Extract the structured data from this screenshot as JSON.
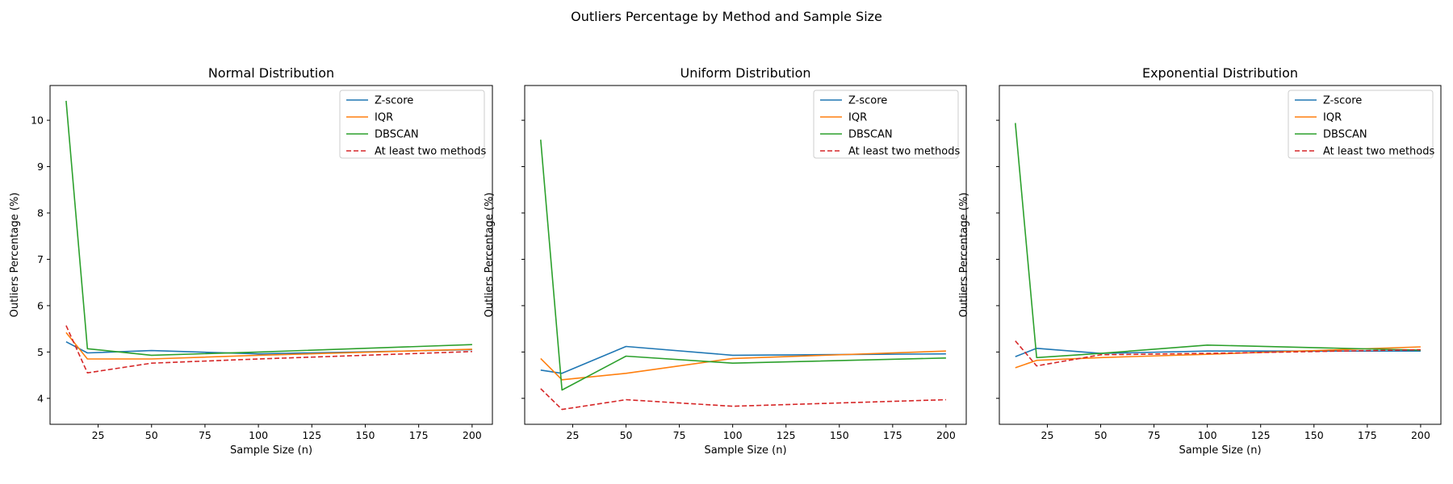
{
  "figure": {
    "title": "Outliers Percentage by Method and Sample Size"
  },
  "chart_data": [
    {
      "type": "line",
      "title": "Normal Distribution",
      "xlabel": "Sample Size (n)",
      "ylabel": "Outliers Percentage (%)",
      "xlim": [
        2.5,
        209.5
      ],
      "ylim": [
        3.44,
        10.75
      ],
      "xticks": [
        25,
        50,
        75,
        100,
        125,
        150,
        175,
        200
      ],
      "yticks": [
        4,
        5,
        6,
        7,
        8,
        9,
        10
      ],
      "show_y_tick_labels": true,
      "grid": false,
      "legend_position": "top-right",
      "x": [
        10,
        20,
        50,
        100,
        200
      ],
      "series": [
        {
          "name": "Z-score",
          "color": "#1f77b4",
          "style": "solid",
          "values": [
            5.22,
            4.98,
            5.03,
            4.96,
            5.05
          ]
        },
        {
          "name": "IQR",
          "color": "#ff7f0e",
          "style": "solid",
          "values": [
            5.42,
            4.85,
            4.85,
            4.93,
            5.06
          ]
        },
        {
          "name": "DBSCAN",
          "color": "#2ca02c",
          "style": "solid",
          "values": [
            10.42,
            5.07,
            4.93,
            5.0,
            5.16
          ]
        },
        {
          "name": "At least two methods",
          "color": "#d62728",
          "style": "dashed",
          "values": [
            5.57,
            4.55,
            4.76,
            4.85,
            5.01
          ]
        }
      ]
    },
    {
      "type": "line",
      "title": "Uniform Distribution",
      "xlabel": "Sample Size (n)",
      "ylabel": "Outliers Percentage (%)",
      "xlim": [
        2.5,
        209.5
      ],
      "ylim": [
        3.44,
        10.75
      ],
      "xticks": [
        25,
        50,
        75,
        100,
        125,
        150,
        175,
        200
      ],
      "yticks": [
        4,
        5,
        6,
        7,
        8,
        9,
        10
      ],
      "show_y_tick_labels": false,
      "grid": false,
      "legend_position": "top-right",
      "x": [
        10,
        20,
        50,
        100,
        200
      ],
      "series": [
        {
          "name": "Z-score",
          "color": "#1f77b4",
          "style": "solid",
          "values": [
            4.61,
            4.54,
            5.12,
            4.93,
            4.96
          ]
        },
        {
          "name": "IQR",
          "color": "#ff7f0e",
          "style": "solid",
          "values": [
            4.86,
            4.4,
            4.54,
            4.86,
            5.02
          ]
        },
        {
          "name": "DBSCAN",
          "color": "#2ca02c",
          "style": "solid",
          "values": [
            9.58,
            4.18,
            4.91,
            4.76,
            4.87
          ]
        },
        {
          "name": "At least two methods",
          "color": "#d62728",
          "style": "dashed",
          "values": [
            4.21,
            3.76,
            3.97,
            3.83,
            3.97
          ]
        }
      ]
    },
    {
      "type": "line",
      "title": "Exponential Distribution",
      "xlabel": "Sample Size (n)",
      "ylabel": "Outliers Percentage (%)",
      "xlim": [
        2.5,
        209.5
      ],
      "ylim": [
        3.44,
        10.75
      ],
      "xticks": [
        25,
        50,
        75,
        100,
        125,
        150,
        175,
        200
      ],
      "yticks": [
        4,
        5,
        6,
        7,
        8,
        9,
        10
      ],
      "show_y_tick_labels": false,
      "grid": false,
      "legend_position": "top-right",
      "x": [
        10,
        20,
        50,
        100,
        200
      ],
      "series": [
        {
          "name": "Z-score",
          "color": "#1f77b4",
          "style": "solid",
          "values": [
            4.9,
            5.08,
            4.97,
            5.02,
            5.02
          ]
        },
        {
          "name": "IQR",
          "color": "#ff7f0e",
          "style": "solid",
          "values": [
            4.66,
            4.82,
            4.88,
            4.95,
            5.11
          ]
        },
        {
          "name": "DBSCAN",
          "color": "#2ca02c",
          "style": "solid",
          "values": [
            9.94,
            4.88,
            4.97,
            5.15,
            5.04
          ]
        },
        {
          "name": "At least two methods",
          "color": "#d62728",
          "style": "dashed",
          "values": [
            5.24,
            4.7,
            4.94,
            4.97,
            5.05
          ]
        }
      ]
    }
  ]
}
